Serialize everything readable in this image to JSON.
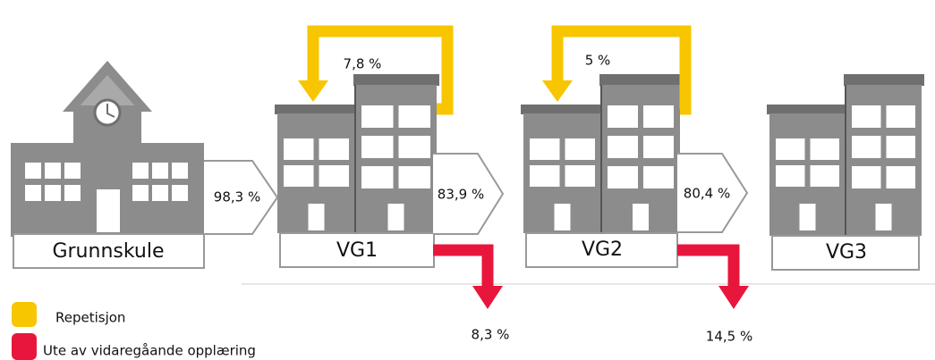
{
  "stages": [
    {
      "label": "Grunnskule"
    },
    {
      "label": "VG1"
    },
    {
      "label": "VG2"
    },
    {
      "label": "VG3"
    }
  ],
  "progression": [
    {
      "label": "98,3 %"
    },
    {
      "label": "83,9 %"
    },
    {
      "label": "80,4 %"
    }
  ],
  "repetition": [
    {
      "label": "7,8 %"
    },
    {
      "label": "5 %"
    }
  ],
  "dropout": [
    {
      "label": "8,3 %"
    },
    {
      "label": "14,5 %"
    }
  ],
  "legend": [
    {
      "label": "Repetisjon",
      "color": "#f7c600"
    },
    {
      "label": "Ute av vidaregåande opplæring",
      "color": "#e8163c"
    }
  ]
}
